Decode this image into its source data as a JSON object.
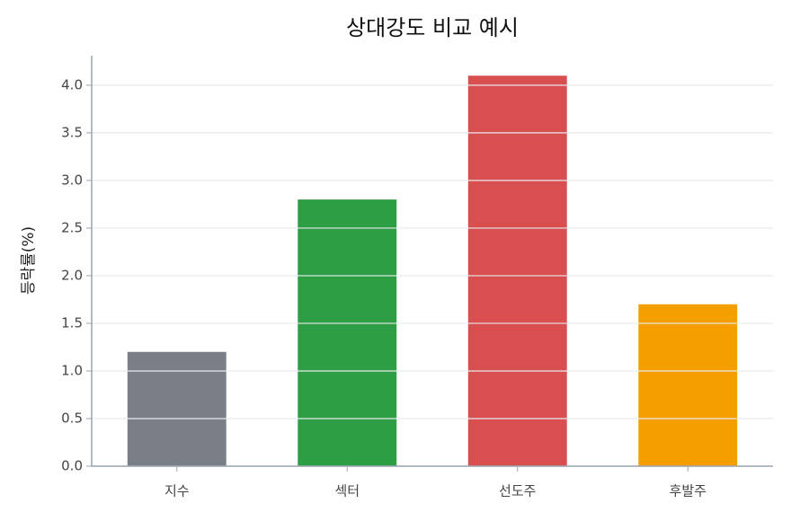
{
  "chart_data": {
    "type": "bar",
    "title": "상대강도 비교 예시",
    "y_label": "등락률(%)",
    "categories": [
      "지수",
      "섹터",
      "선도주",
      "후발주"
    ],
    "values": [
      1.2,
      2.8,
      4.1,
      1.7
    ],
    "colors": [
      "#7a7f87",
      "#2e9e44",
      "#d94f50",
      "#f59e00"
    ],
    "ylim": [
      0,
      4.31
    ],
    "yticks": [
      {
        "value": 0,
        "label": "0.0"
      },
      {
        "value": 0.5,
        "label": "0.5"
      },
      {
        "value": 1,
        "label": "1.0"
      },
      {
        "value": 1.5,
        "label": "1.5"
      },
      {
        "value": 2,
        "label": "2.0"
      },
      {
        "value": 2.5,
        "label": "2.5"
      },
      {
        "value": 3,
        "label": "3.0"
      },
      {
        "value": 3.5,
        "label": "3.5"
      },
      {
        "value": 4,
        "label": "4.0"
      }
    ],
    "grid": true
  }
}
